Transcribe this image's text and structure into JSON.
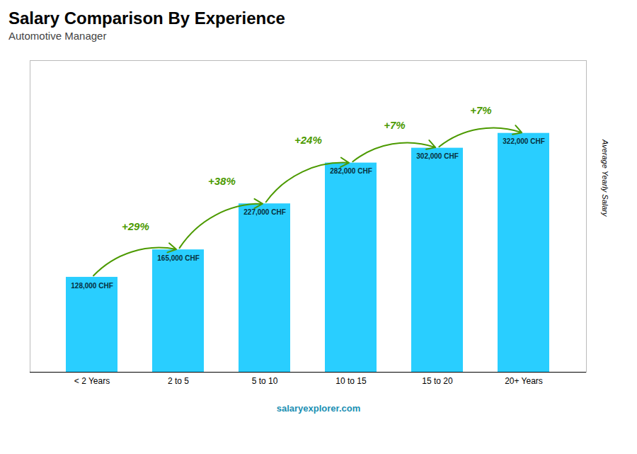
{
  "chart_data": {
    "type": "bar",
    "title": "Salary Comparison By Experience",
    "subtitle": "Automotive Manager",
    "ylabel": "Average Yearly Salary",
    "caption": "salaryexplorer.com",
    "categories": [
      "< 2 Years",
      "2 to 5",
      "5 to 10",
      "10 to 15",
      "15 to 20",
      "20+ Years"
    ],
    "values": [
      128000,
      165000,
      227000,
      282000,
      302000,
      322000
    ],
    "value_labels": [
      "128,000 CHF",
      "165,000 CHF",
      "227,000 CHF",
      "282,000 CHF",
      "302,000 CHF",
      "322,000 CHF"
    ],
    "data_labels": true,
    "annotations": [
      "+29%",
      "+38%",
      "+24%",
      "+7%",
      "+7%"
    ],
    "color": "#29CEFF",
    "ylim": [
      0,
      420000
    ],
    "tick_labels": "x",
    "grid": false
  }
}
